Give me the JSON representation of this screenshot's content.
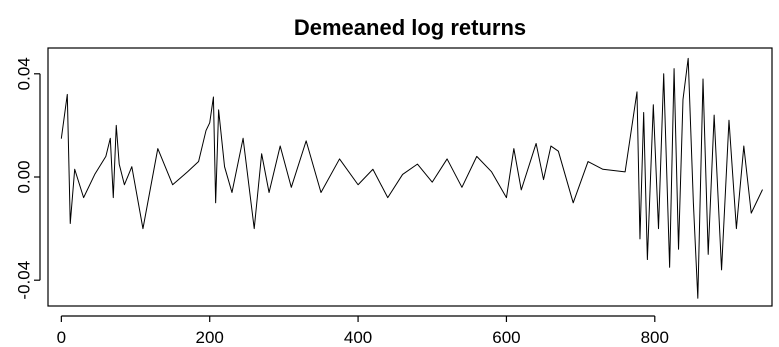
{
  "chart_data": {
    "type": "line",
    "title": "Demeaned log returns",
    "xlabel": "",
    "ylabel": "",
    "xlim": [
      -18,
      958
    ],
    "ylim": [
      -0.05,
      0.05
    ],
    "x_ticks": [
      0,
      200,
      400,
      600,
      800
    ],
    "x_tick_labels": [
      "0",
      "200",
      "400",
      "600",
      "800"
    ],
    "y_ticks": [
      -0.04,
      0.0,
      0.04
    ],
    "y_tick_labels": [
      "-0.04",
      "0.00",
      "0.04"
    ],
    "grid": false,
    "legend": "none",
    "series": [
      {
        "color": "#000000",
        "x": [
          0,
          8,
          12,
          18,
          30,
          45,
          60,
          66,
          70,
          74,
          78,
          85,
          95,
          110,
          130,
          150,
          170,
          185,
          195,
          200,
          205,
          208,
          212,
          220,
          230,
          245,
          260,
          270,
          280,
          295,
          310,
          330,
          350,
          375,
          400,
          420,
          440,
          460,
          480,
          500,
          520,
          540,
          560,
          580,
          600,
          610,
          620,
          640,
          650,
          660,
          670,
          690,
          710,
          730,
          760,
          776,
          780,
          785,
          790,
          798,
          805,
          812,
          820,
          826,
          832,
          838,
          845,
          852,
          858,
          865,
          872,
          880,
          890,
          900,
          910,
          920,
          930,
          945
        ],
        "values": [
          0.015,
          0.032,
          -0.018,
          0.003,
          -0.008,
          0.001,
          0.008,
          0.015,
          -0.008,
          0.02,
          0.005,
          -0.003,
          0.004,
          -0.02,
          0.011,
          -0.003,
          0.002,
          0.006,
          0.018,
          0.021,
          0.031,
          -0.01,
          0.026,
          0.004,
          -0.006,
          0.015,
          -0.02,
          0.009,
          -0.006,
          0.012,
          -0.004,
          0.014,
          -0.006,
          0.007,
          -0.003,
          0.003,
          -0.008,
          0.001,
          0.005,
          -0.002,
          0.007,
          -0.004,
          0.008,
          0.002,
          -0.008,
          0.011,
          -0.005,
          0.013,
          -0.001,
          0.012,
          0.01,
          -0.01,
          0.006,
          0.003,
          0.002,
          0.033,
          -0.024,
          0.025,
          -0.032,
          0.028,
          -0.02,
          0.04,
          -0.035,
          0.042,
          -0.028,
          0.03,
          0.046,
          -0.01,
          -0.047,
          0.038,
          -0.03,
          0.024,
          -0.036,
          0.022,
          -0.02,
          0.012,
          -0.014,
          -0.005
        ]
      }
    ]
  }
}
